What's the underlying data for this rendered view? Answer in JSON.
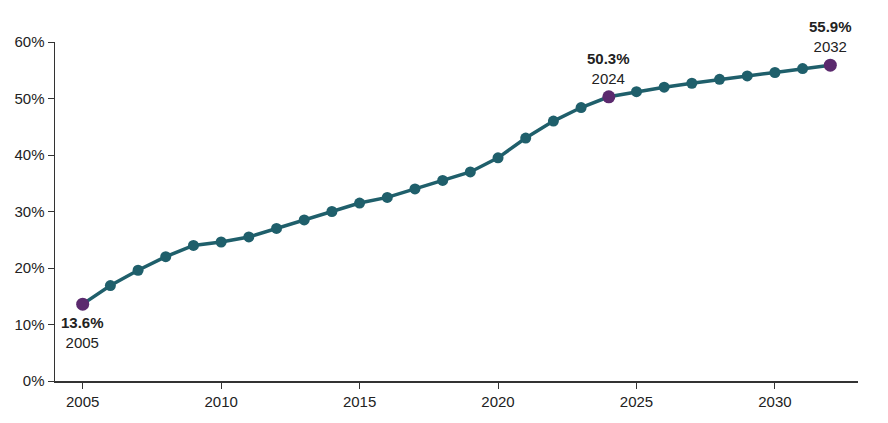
{
  "chart_data": {
    "type": "line",
    "x": [
      2005,
      2006,
      2007,
      2008,
      2009,
      2010,
      2011,
      2012,
      2013,
      2014,
      2015,
      2016,
      2017,
      2018,
      2019,
      2020,
      2021,
      2022,
      2023,
      2024,
      2025,
      2026,
      2027,
      2028,
      2029,
      2030,
      2031,
      2032
    ],
    "values": [
      13.6,
      16.9,
      19.6,
      22.0,
      24.0,
      24.6,
      25.5,
      27.0,
      28.5,
      30.0,
      31.5,
      32.5,
      34.0,
      35.5,
      37.0,
      39.5,
      43.0,
      46.0,
      48.4,
      50.3,
      51.2,
      52.0,
      52.7,
      53.4,
      54.0,
      54.6,
      55.3,
      55.9
    ],
    "color": "#1f5f6b",
    "marker": "circle",
    "xlim": [
      2004,
      2033
    ],
    "xticks": [
      2005,
      2010,
      2015,
      2020,
      2025,
      2030
    ],
    "ylim": [
      0,
      60
    ],
    "yticks": [
      {
        "value": 0,
        "label": "0%"
      },
      {
        "value": 10,
        "label": "10%"
      },
      {
        "value": 20,
        "label": "20%"
      },
      {
        "value": 30,
        "label": "30%"
      },
      {
        "value": 40,
        "label": "40%"
      },
      {
        "value": 50,
        "label": "50%"
      },
      {
        "value": 60,
        "label": "60%"
      }
    ],
    "grid": false,
    "annotations": [
      {
        "x": 2005,
        "value": 13.6,
        "label": "13.6%",
        "color": "#5b2a6e"
      },
      {
        "x": 2024,
        "value": 50.3,
        "label": "50.3%",
        "color": "#5b2a6e"
      },
      {
        "x": 2032,
        "value": 55.9,
        "label": "55.9%",
        "color": "#5b2a6e"
      }
    ]
  }
}
